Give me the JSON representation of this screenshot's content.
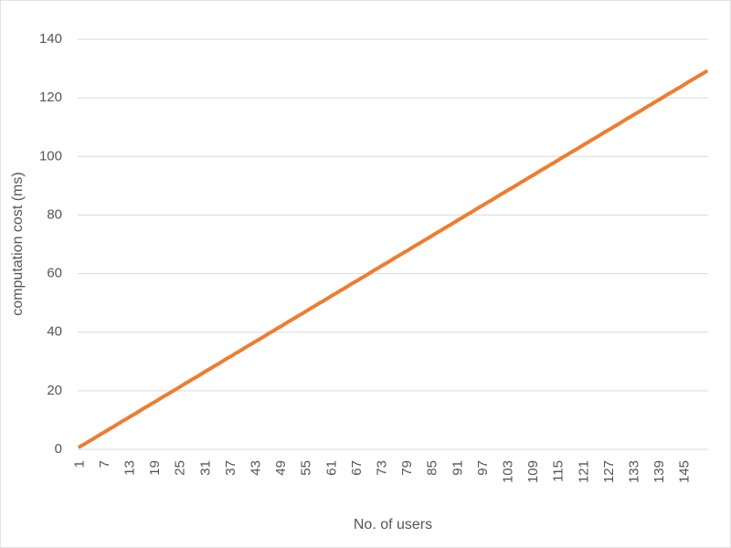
{
  "chart_data": {
    "type": "line",
    "x_label": "No. of users",
    "y_label": "computation cost (ms)",
    "categories": [
      1,
      null,
      null,
      null,
      null,
      null,
      7,
      null,
      null,
      null,
      null,
      null,
      13,
      null,
      null,
      null,
      null,
      null,
      19,
      null,
      null,
      null,
      null,
      null,
      25,
      null,
      null,
      null,
      null,
      null,
      31,
      null,
      null,
      null,
      null,
      null,
      37,
      null,
      null,
      null,
      null,
      null,
      43,
      null,
      null,
      null,
      null,
      null,
      49,
      null,
      null,
      null,
      null,
      null,
      55,
      null,
      null,
      null,
      null,
      null,
      61,
      null,
      null,
      null,
      null,
      null,
      67,
      null,
      null,
      null,
      null,
      null,
      73,
      null,
      null,
      null,
      null,
      null,
      79,
      null,
      null,
      null,
      null,
      null,
      85,
      null,
      null,
      null,
      null,
      null,
      91,
      null,
      null,
      null,
      null,
      null,
      97,
      null,
      null,
      null,
      null,
      null,
      103,
      null,
      null,
      null,
      null,
      null,
      109,
      null,
      null,
      null,
      null,
      null,
      115,
      null,
      null,
      null,
      null,
      null,
      121,
      null,
      null,
      null,
      null,
      null,
      127,
      null,
      null,
      null,
      null,
      null,
      133,
      null,
      null,
      null,
      null,
      null,
      139,
      null,
      null,
      null,
      null,
      null,
      145,
      null,
      null,
      null,
      null,
      null
    ],
    "series": [
      {
        "color": "#ed7d31",
        "values": [
          0.9,
          1.7,
          2.6,
          3.4,
          4.3,
          5.2,
          6.0,
          6.9,
          7.7,
          8.6,
          9.5,
          10.3,
          11.2,
          12.0,
          12.9,
          13.8,
          14.6,
          15.5,
          16.3,
          17.2,
          18.1,
          18.9,
          19.8,
          20.6,
          21.5,
          22.4,
          23.2,
          24.1,
          24.9,
          25.8,
          26.7,
          27.5,
          28.4,
          29.2,
          30.1,
          31.0,
          31.8,
          32.7,
          33.5,
          34.4,
          35.3,
          36.1,
          37.0,
          37.8,
          38.7,
          39.6,
          40.4,
          41.3,
          42.1,
          43.0,
          43.9,
          44.7,
          45.6,
          46.4,
          47.3,
          48.2,
          49.0,
          49.9,
          50.7,
          51.6,
          52.5,
          53.3,
          54.2,
          55.0,
          55.9,
          56.8,
          57.6,
          58.5,
          59.3,
          60.2,
          61.1,
          61.9,
          62.8,
          63.6,
          64.5,
          65.4,
          66.2,
          67.1,
          67.9,
          68.8,
          69.7,
          70.5,
          71.4,
          72.2,
          73.1,
          74.0,
          74.8,
          75.7,
          76.5,
          77.4,
          78.3,
          79.1,
          80.0,
          80.8,
          81.7,
          82.6,
          83.4,
          84.3,
          85.1,
          86.0,
          86.9,
          87.7,
          88.6,
          89.4,
          90.3,
          91.2,
          92.0,
          92.9,
          93.7,
          94.6,
          95.5,
          96.3,
          97.2,
          98.0,
          98.9,
          99.8,
          100.6,
          101.5,
          102.3,
          103.2,
          104.1,
          104.9,
          105.8,
          106.6,
          107.5,
          108.4,
          109.2,
          110.1,
          110.9,
          111.8,
          112.7,
          113.5,
          114.4,
          115.2,
          116.1,
          117.0,
          117.8,
          118.7,
          119.5,
          120.4,
          121.3,
          122.1,
          123.0,
          123.8,
          124.7,
          125.6,
          126.4,
          127.3,
          128.1,
          129.0
        ]
      }
    ],
    "ylim": [
      0,
      140
    ],
    "yticks": [
      0,
      20,
      40,
      60,
      80,
      100,
      120,
      140
    ],
    "grid": true
  }
}
